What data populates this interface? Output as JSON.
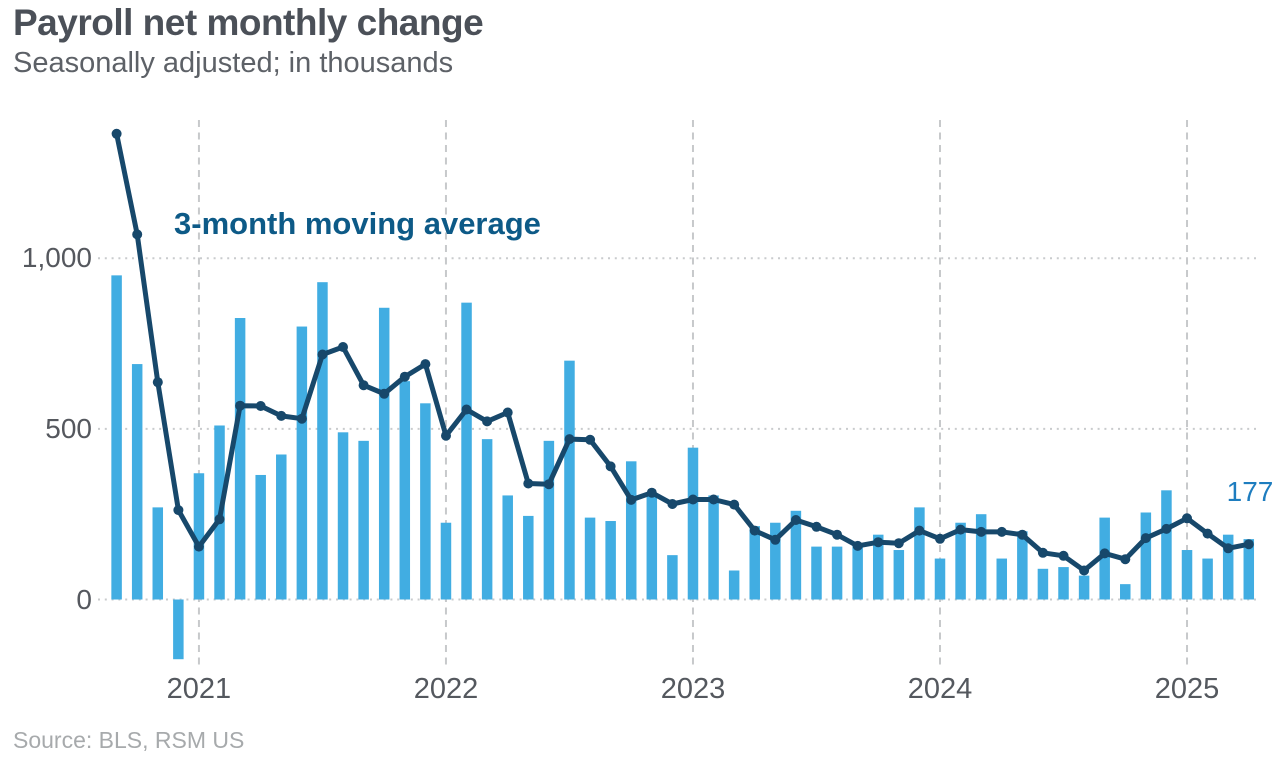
{
  "header": {
    "title": "Payroll net monthly change",
    "subtitle": "Seasonally adjusted; in thousands"
  },
  "annotations": {
    "series_label": "3-month moving average",
    "last_value_label": "177"
  },
  "source": {
    "label": "Source: BLS, RSM US"
  },
  "colors": {
    "bar": "#41ade2",
    "line": "#17486b",
    "series_label_text": "#0d5a87",
    "last_value_text": "#1e7dbf",
    "grid_dotted": "#c9cbcd",
    "grid_dashed": "#c7c9cb",
    "axis_text": "#55585e",
    "title_text": "#4b5058",
    "subtitle_text": "#5d6167",
    "source_text": "#a7aaac",
    "background": "#ffffff"
  },
  "chart_data": {
    "type": "bar",
    "title": "Payroll net monthly change",
    "subtitle": "Seasonally adjusted; in thousands",
    "unit": "thousands of jobs",
    "legend_position": "none",
    "y_axis": {
      "ticks": [
        0,
        500,
        1000
      ],
      "tick_labels": [
        "0",
        "500",
        "1,000"
      ],
      "range": [
        -250,
        1430
      ],
      "grid": "dotted horizontal"
    },
    "x_axis": {
      "tick_labels": [
        "2021",
        "2022",
        "2023",
        "2024",
        "2025"
      ],
      "tick_month_indices": [
        4,
        16,
        28,
        40,
        52
      ],
      "grid": "dashed vertical"
    },
    "categories": [
      "2020-09",
      "2020-10",
      "2020-11",
      "2020-12",
      "2021-01",
      "2021-02",
      "2021-03",
      "2021-04",
      "2021-05",
      "2021-06",
      "2021-07",
      "2021-08",
      "2021-09",
      "2021-10",
      "2021-11",
      "2021-12",
      "2022-01",
      "2022-02",
      "2022-03",
      "2022-04",
      "2022-05",
      "2022-06",
      "2022-07",
      "2022-08",
      "2022-09",
      "2022-10",
      "2022-11",
      "2022-12",
      "2023-01",
      "2023-02",
      "2023-03",
      "2023-04",
      "2023-05",
      "2023-06",
      "2023-07",
      "2023-08",
      "2023-09",
      "2023-10",
      "2023-11",
      "2023-12",
      "2024-01",
      "2024-02",
      "2024-03",
      "2024-04",
      "2024-05",
      "2024-06",
      "2024-07",
      "2024-08",
      "2024-09",
      "2024-10",
      "2024-11",
      "2024-12",
      "2025-01",
      "2025-02",
      "2025-03",
      "2025-04"
    ],
    "series": [
      {
        "name": "Payroll net monthly change",
        "type": "bar",
        "color": "#41ade2",
        "values": [
          950,
          690,
          270,
          -175,
          370,
          510,
          825,
          365,
          425,
          800,
          930,
          490,
          465,
          855,
          640,
          575,
          225,
          870,
          470,
          305,
          245,
          465,
          700,
          240,
          230,
          405,
          305,
          130,
          445,
          305,
          85,
          215,
          225,
          260,
          155,
          155,
          160,
          190,
          145,
          270,
          120,
          225,
          250,
          120,
          200,
          90,
          95,
          70,
          240,
          45,
          255,
          320,
          145,
          120,
          190,
          177
        ]
      },
      {
        "name": "3-month moving average",
        "type": "line",
        "color": "#17486b",
        "values": [
          1365,
          1070,
          637,
          262,
          155,
          235,
          568,
          567,
          538,
          530,
          718,
          740,
          628,
          603,
          653,
          690,
          480,
          557,
          522,
          548,
          340,
          338,
          470,
          468,
          390,
          292,
          313,
          280,
          293,
          293,
          278,
          202,
          175,
          233,
          213,
          190,
          157,
          168,
          165,
          202,
          178,
          205,
          198,
          198,
          190,
          137,
          128,
          85,
          135,
          118,
          180,
          207,
          238,
          193,
          150,
          162
        ]
      }
    ],
    "point_label": {
      "text": "177",
      "category": "2025-04",
      "series": "Payroll net monthly change"
    }
  }
}
